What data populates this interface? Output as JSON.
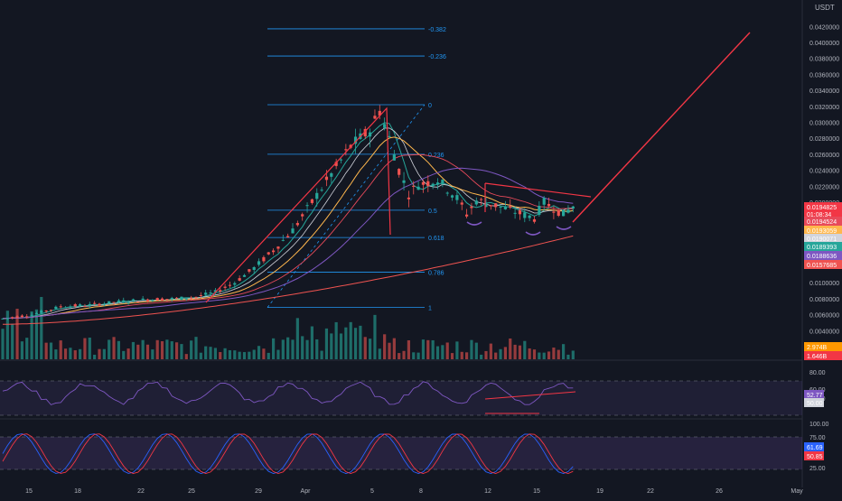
{
  "currency": "USDT",
  "chart_data": [
    {
      "type": "candlestick",
      "panel": "price",
      "y_ticks": [
        "0.0420000",
        "0.0400000",
        "0.0380000",
        "0.0360000",
        "0.0340000",
        "0.0320000",
        "0.0300000",
        "0.0280000",
        "0.0260000",
        "0.0240000",
        "0.0220000",
        "0.0200000",
        "0.0100000",
        "0.0080000",
        "0.0060000",
        "0.0040000"
      ],
      "x_ticks": [
        "15",
        "18",
        "22",
        "25",
        "29",
        "Apr",
        "5",
        "8",
        "12",
        "15",
        "19",
        "22",
        "26",
        "May"
      ],
      "fib_levels": [
        {
          "label": "-0.382",
          "price": 0.0417
        },
        {
          "label": "-0.236",
          "price": 0.0383
        },
        {
          "label": "0",
          "price": 0.0322
        },
        {
          "label": "0.236",
          "price": 0.026
        },
        {
          "label": "0.5",
          "price": 0.019
        },
        {
          "label": "0.618",
          "price": 0.0156
        },
        {
          "label": "0.786",
          "price": 0.0113
        },
        {
          "label": "1",
          "price": 0.0069
        }
      ],
      "price_labels": [
        {
          "text": "0.0194825",
          "sub": "01:08:34",
          "color": "#f23645"
        },
        {
          "text": "0.0194524",
          "color": "#e84a5a"
        },
        {
          "text": "0.0193059",
          "color": "#ffb74d"
        },
        {
          "text": "0.0190071",
          "color": "#d1d4dc"
        },
        {
          "text": "0.0189393",
          "color": "#26a69a"
        },
        {
          "text": "0.0188636",
          "color": "#7e57c2"
        },
        {
          "text": "0.0157685",
          "color": "#ef5350"
        }
      ],
      "volume_labels": [
        {
          "text": "2.974B",
          "color": "#ff9800"
        },
        {
          "text": "1.646B",
          "color": "#f23645"
        }
      ],
      "candle_trend": [
        {
          "x": 0,
          "v": 0.0055
        },
        {
          "x": 6,
          "v": 0.006
        },
        {
          "x": 12,
          "v": 0.007
        },
        {
          "x": 18,
          "v": 0.0072
        },
        {
          "x": 24,
          "v": 0.0076
        },
        {
          "x": 30,
          "v": 0.0079
        },
        {
          "x": 36,
          "v": 0.008
        },
        {
          "x": 40,
          "v": 0.0082
        },
        {
          "x": 44,
          "v": 0.0088
        },
        {
          "x": 48,
          "v": 0.01
        },
        {
          "x": 52,
          "v": 0.0118
        },
        {
          "x": 56,
          "v": 0.014
        },
        {
          "x": 60,
          "v": 0.0165
        },
        {
          "x": 64,
          "v": 0.02
        },
        {
          "x": 68,
          "v": 0.0235
        },
        {
          "x": 72,
          "v": 0.027
        },
        {
          "x": 76,
          "v": 0.029
        },
        {
          "x": 78,
          "v": 0.0315
        },
        {
          "x": 80,
          "v": 0.028
        },
        {
          "x": 82,
          "v": 0.024
        },
        {
          "x": 84,
          "v": 0.021
        },
        {
          "x": 86,
          "v": 0.0222
        },
        {
          "x": 90,
          "v": 0.0228
        },
        {
          "x": 94,
          "v": 0.0205
        },
        {
          "x": 96,
          "v": 0.0185
        },
        {
          "x": 98,
          "v": 0.0202
        },
        {
          "x": 102,
          "v": 0.0196
        },
        {
          "x": 106,
          "v": 0.0188
        },
        {
          "x": 110,
          "v": 0.018
        },
        {
          "x": 112,
          "v": 0.02
        },
        {
          "x": 116,
          "v": 0.0185
        },
        {
          "x": 118,
          "v": 0.0195
        }
      ]
    },
    {
      "type": "line",
      "panel": "rsi",
      "y_ticks": [
        "80.00",
        "60.00",
        "40.00"
      ],
      "values": [
        {
          "text": "52.77",
          "color": "#7e57c2"
        },
        {
          "text": "50.00",
          "color": "#d1d4dc"
        }
      ]
    },
    {
      "type": "line",
      "panel": "stochastic",
      "y_ticks": [
        "100.00",
        "75.00",
        "25.00"
      ],
      "values": [
        {
          "text": "61.69",
          "color": "#2962ff"
        },
        {
          "text": "50.85",
          "color": "#f23645"
        }
      ]
    }
  ]
}
